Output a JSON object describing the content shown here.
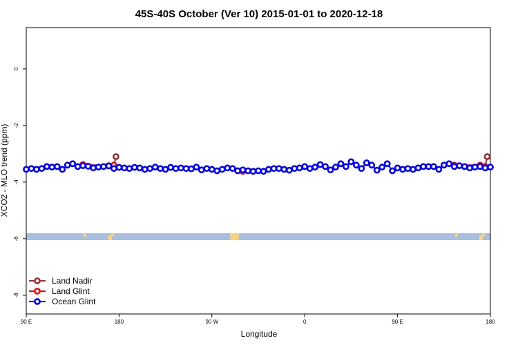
{
  "chart_data": {
    "type": "line",
    "title": "45S-40S October (Ver 10)   2015-01-01 to 2020-12-18",
    "xlabel": "Longitude",
    "ylabel": "XCO2 - MLO trend (ppm)",
    "xlim": [
      90,
      540
    ],
    "ylim": [
      -8.66,
      1.46
    ],
    "xticks": [
      {
        "value": 90,
        "label": "90 E"
      },
      180,
      {
        "value": 270,
        "label": "90 W"
      },
      {
        "value": 360,
        "label": "0"
      },
      {
        "value": 450,
        "label": "90 E"
      },
      {
        "value": 540,
        "label": "180"
      }
    ],
    "yticks": [
      0,
      -2,
      -4,
      -6,
      -8
    ],
    "legend": "bottom-left",
    "series": [
      {
        "name": "Land Nadir",
        "color": "#a52a2a",
        "x": [
          175,
          177,
          360,
          535,
          537
        ],
        "values": [
          -3.42,
          -3.1,
          null,
          -3.45,
          -3.1
        ]
      },
      {
        "name": "Land Glint",
        "color": "#ff0000",
        "x": [
          145,
          170,
          175,
          235,
          295,
          300,
          400,
          505,
          530,
          535
        ],
        "values": [
          -3.38,
          -3.42,
          -3.4,
          null,
          -3.6,
          -3.62,
          null,
          -3.4,
          -3.4,
          -3.45
        ]
      },
      {
        "name": "Ocean Glint",
        "color": "#0000ff",
        "x": [
          90,
          95,
          100,
          105,
          110,
          115,
          120,
          125,
          130,
          135,
          140,
          145,
          150,
          155,
          160,
          165,
          170,
          175,
          180,
          185,
          190,
          195,
          200,
          205,
          210,
          215,
          220,
          225,
          230,
          235,
          240,
          245,
          250,
          255,
          260,
          265,
          270,
          275,
          280,
          285,
          290,
          295,
          300,
          305,
          310,
          315,
          320,
          325,
          330,
          335,
          340,
          345,
          350,
          355,
          360,
          365,
          370,
          375,
          380,
          385,
          390,
          395,
          400,
          405,
          410,
          415,
          420,
          425,
          430,
          435,
          440,
          445,
          450,
          455,
          460,
          465,
          470,
          475,
          480,
          485,
          490,
          495,
          500,
          505,
          510,
          515,
          520,
          525,
          530,
          535,
          540
        ],
        "values": [
          -3.55,
          -3.52,
          -3.55,
          -3.52,
          -3.45,
          -3.47,
          -3.45,
          -3.55,
          -3.4,
          -3.35,
          -3.45,
          -3.42,
          -3.44,
          -3.5,
          -3.47,
          -3.45,
          -3.43,
          -3.52,
          -3.48,
          -3.5,
          -3.52,
          -3.48,
          -3.5,
          -3.55,
          -3.52,
          -3.47,
          -3.52,
          -3.55,
          -3.48,
          -3.52,
          -3.5,
          -3.52,
          -3.53,
          -3.47,
          -3.57,
          -3.52,
          -3.55,
          -3.6,
          -3.55,
          -3.5,
          -3.52,
          -3.6,
          -3.57,
          -3.6,
          -3.62,
          -3.6,
          -3.62,
          -3.55,
          -3.52,
          -3.52,
          -3.55,
          -3.58,
          -3.52,
          -3.5,
          -3.45,
          -3.52,
          -3.47,
          -3.38,
          -3.45,
          -3.57,
          -3.47,
          -3.35,
          -3.45,
          -3.28,
          -3.4,
          -3.52,
          -3.32,
          -3.4,
          -3.58,
          -3.47,
          -3.35,
          -3.6,
          -3.5,
          -3.55,
          -3.52,
          -3.55,
          -3.5,
          -3.45,
          -3.45,
          -3.45,
          -3.55,
          -3.4,
          -3.35,
          -3.45,
          -3.42,
          -3.45,
          -3.5,
          -3.47,
          -3.45,
          -3.5,
          -3.47
        ]
      }
    ]
  }
}
